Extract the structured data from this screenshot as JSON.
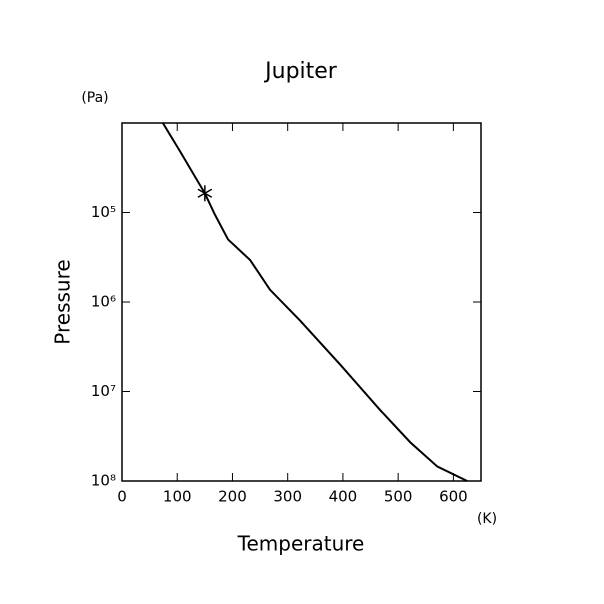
{
  "chart_data": {
    "type": "line",
    "title": "Jupiter",
    "xlabel": "Temperature",
    "xunit": "(K)",
    "ylabel": "Pressure",
    "yunit": "(Pa)",
    "log_y": true,
    "y_inverted": true,
    "xlim": [
      0,
      650
    ],
    "xticks": [
      0,
      100,
      200,
      300,
      400,
      500,
      600
    ],
    "ylim": [
      10000,
      100000000
    ],
    "yticks": [
      {
        "value": 100000,
        "label": "10⁵"
      },
      {
        "value": 1000000,
        "label": "10⁶"
      },
      {
        "value": 10000000,
        "label": "10⁷"
      },
      {
        "value": 100000000,
        "label": "10⁸"
      }
    ],
    "series": [
      {
        "color": "#000000",
        "marker": "none",
        "x": [
          74,
          105,
          150,
          168,
          192,
          232,
          268,
          322,
          395,
          467,
          522,
          571,
          625
        ],
        "values": [
          10000,
          20700,
          61000,
          105000,
          200000,
          340000,
          730000,
          1600000,
          5000000,
          16000000,
          37000000,
          69000000,
          100000000
        ]
      },
      {
        "color": "#000000",
        "marker": "asterisk",
        "x": [
          150
        ],
        "values": [
          61000
        ]
      }
    ]
  }
}
